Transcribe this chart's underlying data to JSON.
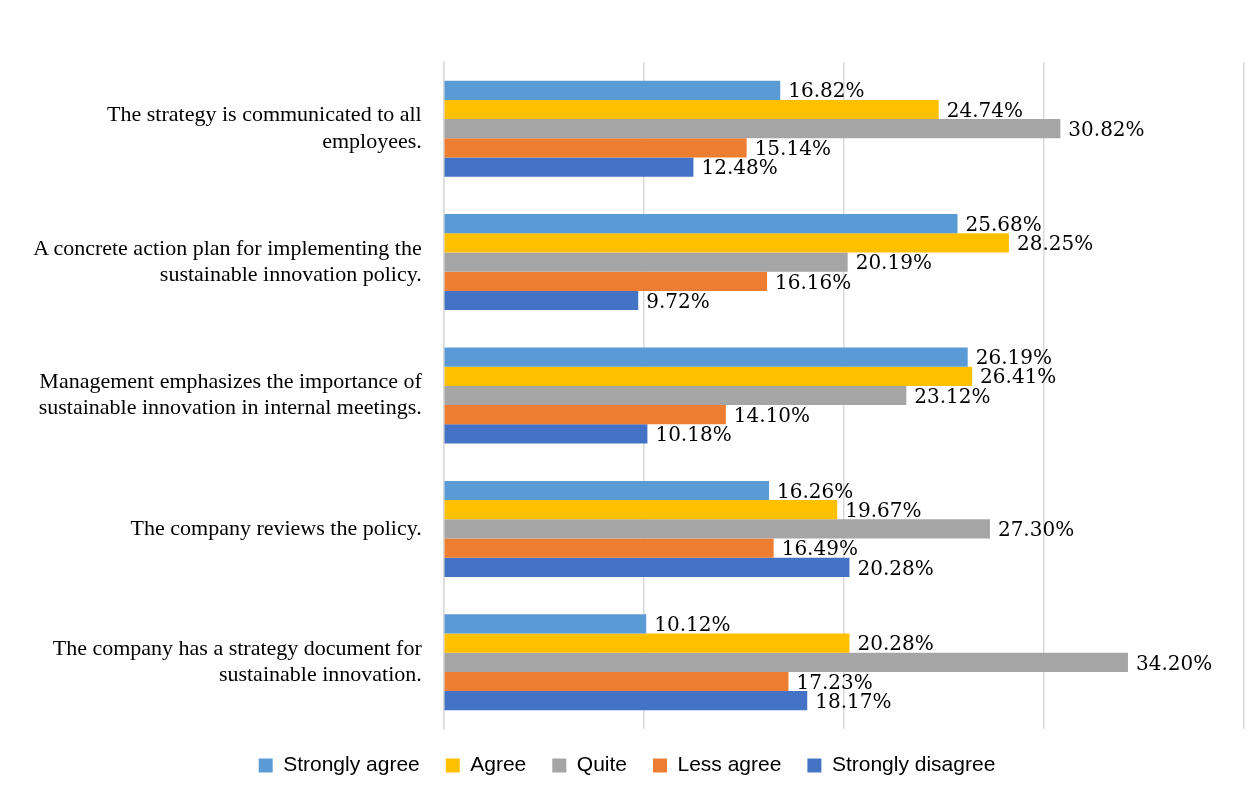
{
  "chart_data": {
    "type": "bar",
    "orientation": "horizontal",
    "categories": [
      "The strategy is communicated to all employees.",
      "A concrete action plan for implementing the sustainable innovation policy.",
      "Management emphasizes the importance of sustainable innovation in internal meetings.",
      "The company reviews the policy.",
      "The company has a strategy document for sustainable innovation."
    ],
    "series": [
      {
        "name": "Strongly agree",
        "color": "#5b9bd5",
        "values": [
          16.82,
          25.68,
          26.19,
          16.26,
          10.12
        ],
        "value_labels": [
          "16.82%",
          "25.68%",
          "26.19%",
          "16.26%",
          "10.12%"
        ]
      },
      {
        "name": "Agree",
        "color": "#ffc000",
        "values": [
          24.74,
          28.25,
          26.41,
          19.67,
          20.28
        ],
        "value_labels": [
          "24.74%",
          "28.25%",
          "26.41%",
          "19.67%",
          "20.28%"
        ]
      },
      {
        "name": "Quite",
        "color": "#a5a5a5",
        "values": [
          30.82,
          20.19,
          23.12,
          27.3,
          34.2
        ],
        "value_labels": [
          "30.82%",
          "20.19%",
          "23.12%",
          "27.30%",
          "34.20%"
        ]
      },
      {
        "name": "Less agree",
        "color": "#ed7d31",
        "values": [
          15.14,
          16.16,
          14.1,
          16.49,
          17.23
        ],
        "value_labels": [
          "15.14%",
          "16.16%",
          "14.10%",
          "16.49%",
          "17.23%"
        ]
      },
      {
        "name": "Strongly disagree",
        "color": "#4472c4",
        "values": [
          12.48,
          9.72,
          10.18,
          20.28,
          18.17
        ],
        "value_labels": [
          "12.48%",
          "9.72%",
          "10.18%",
          "20.28%",
          "18.17%"
        ]
      }
    ],
    "xlim": [
      0,
      40
    ],
    "xticks": [
      {
        "value": 0,
        "label": null
      },
      {
        "value": 10,
        "label": null
      },
      {
        "value": 20,
        "label": null
      },
      {
        "value": 30,
        "label": null
      },
      {
        "value": 40,
        "label": null
      }
    ],
    "grid": "x",
    "legend": "bottom",
    "tick_labels": "y"
  }
}
